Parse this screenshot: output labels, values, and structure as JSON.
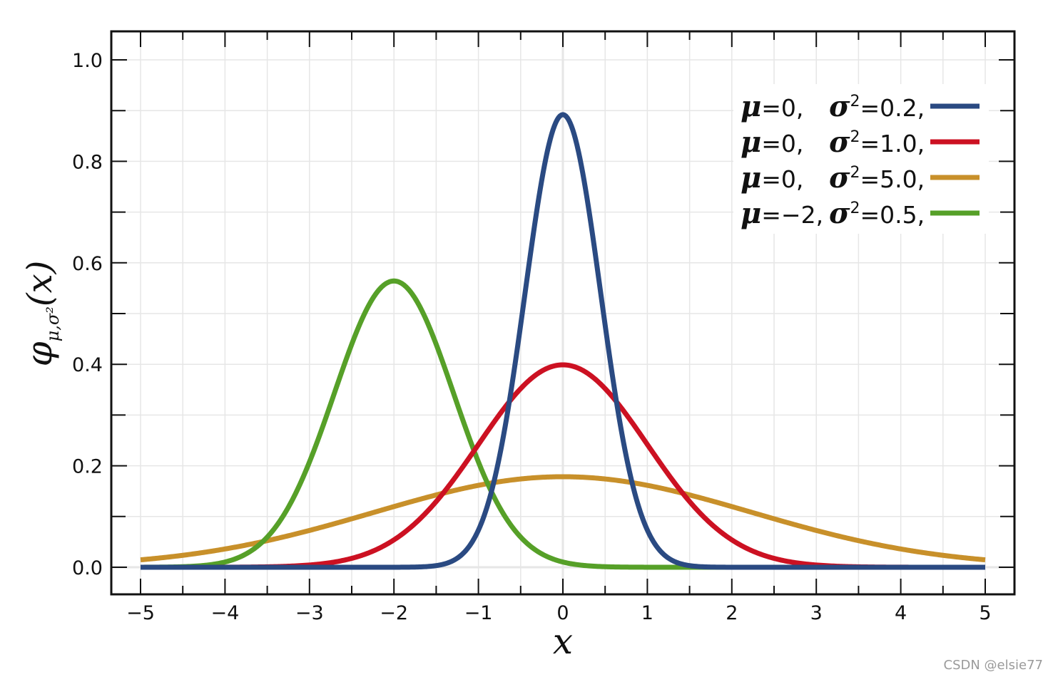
{
  "chart_data": {
    "type": "line",
    "xlabel": "x",
    "ylabel": "φμ,σ²(x)",
    "ylabel_parts": {
      "phi": "φ",
      "sub": "μ,σ²",
      "arg": "(x)"
    },
    "xlim": [
      -5,
      5
    ],
    "ylim": [
      0,
      1.0
    ],
    "x_ticks": [
      -5,
      -4,
      -3,
      -2,
      -1,
      0,
      1,
      2,
      3,
      4,
      5
    ],
    "x_tick_labels": [
      "−5",
      "−4",
      "−3",
      "−2",
      "−1",
      "0",
      "1",
      "2",
      "3",
      "4",
      "5"
    ],
    "y_ticks": [
      0.0,
      0.2,
      0.4,
      0.6,
      0.8,
      1.0
    ],
    "y_tick_labels": [
      "0.0",
      "0.2",
      "0.4",
      "0.6",
      "0.8",
      "1.0"
    ],
    "grid": true,
    "legend_position": "top-right",
    "series": [
      {
        "name": "μ=0, σ²=0.2,",
        "mu_label": "=0,",
        "sigma_label": "=0.2,",
        "mu": 0,
        "variance": 0.2,
        "color": "#2a4a82"
      },
      {
        "name": "μ=0, σ²=1.0,",
        "mu_label": "=0,",
        "sigma_label": "=1.0,",
        "mu": 0,
        "variance": 1.0,
        "color": "#cc1122"
      },
      {
        "name": "μ=0, σ²=5.0,",
        "mu_label": "=0,",
        "sigma_label": "=5.0,",
        "mu": 0,
        "variance": 5.0,
        "color": "#c8902a"
      },
      {
        "name": "μ=−2, σ²=0.5,",
        "mu_label": "=−2,",
        "sigma_label": "=0.5,",
        "mu": -2,
        "variance": 0.5,
        "color": "#56a028"
      }
    ]
  },
  "watermark": "CSDN @elsie77"
}
